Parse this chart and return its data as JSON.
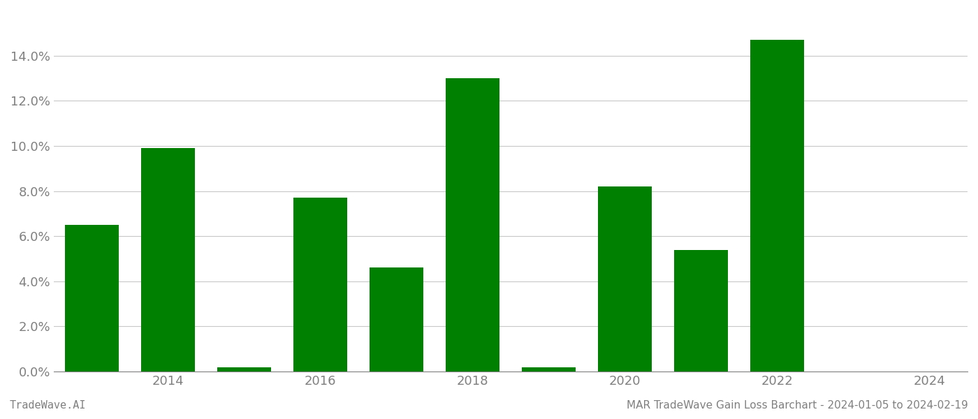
{
  "years": [
    2013,
    2014,
    2015,
    2016,
    2017,
    2018,
    2019,
    2020,
    2021,
    2022,
    2023
  ],
  "values": [
    0.065,
    0.099,
    0.002,
    0.077,
    0.046,
    0.13,
    0.002,
    0.082,
    0.054,
    0.147,
    0.0
  ],
  "bar_color": "#008000",
  "background_color": "#ffffff",
  "grid_color": "#c8c8c8",
  "ylim": [
    0,
    0.16
  ],
  "yticks": [
    0.0,
    0.02,
    0.04,
    0.06,
    0.08,
    0.1,
    0.12,
    0.14
  ],
  "xtick_labels": [
    "2014",
    "2016",
    "2018",
    "2020",
    "2022",
    "2024"
  ],
  "xtick_positions": [
    2014,
    2016,
    2018,
    2020,
    2022,
    2024
  ],
  "xlim": [
    2012.5,
    2024.5
  ],
  "text_color": "#808080",
  "footer_left": "TradeWave.AI",
  "footer_right": "MAR TradeWave Gain Loss Barchart - 2024-01-05 to 2024-02-19",
  "footer_fontsize": 11,
  "tick_fontsize": 13,
  "bar_width": 0.7
}
